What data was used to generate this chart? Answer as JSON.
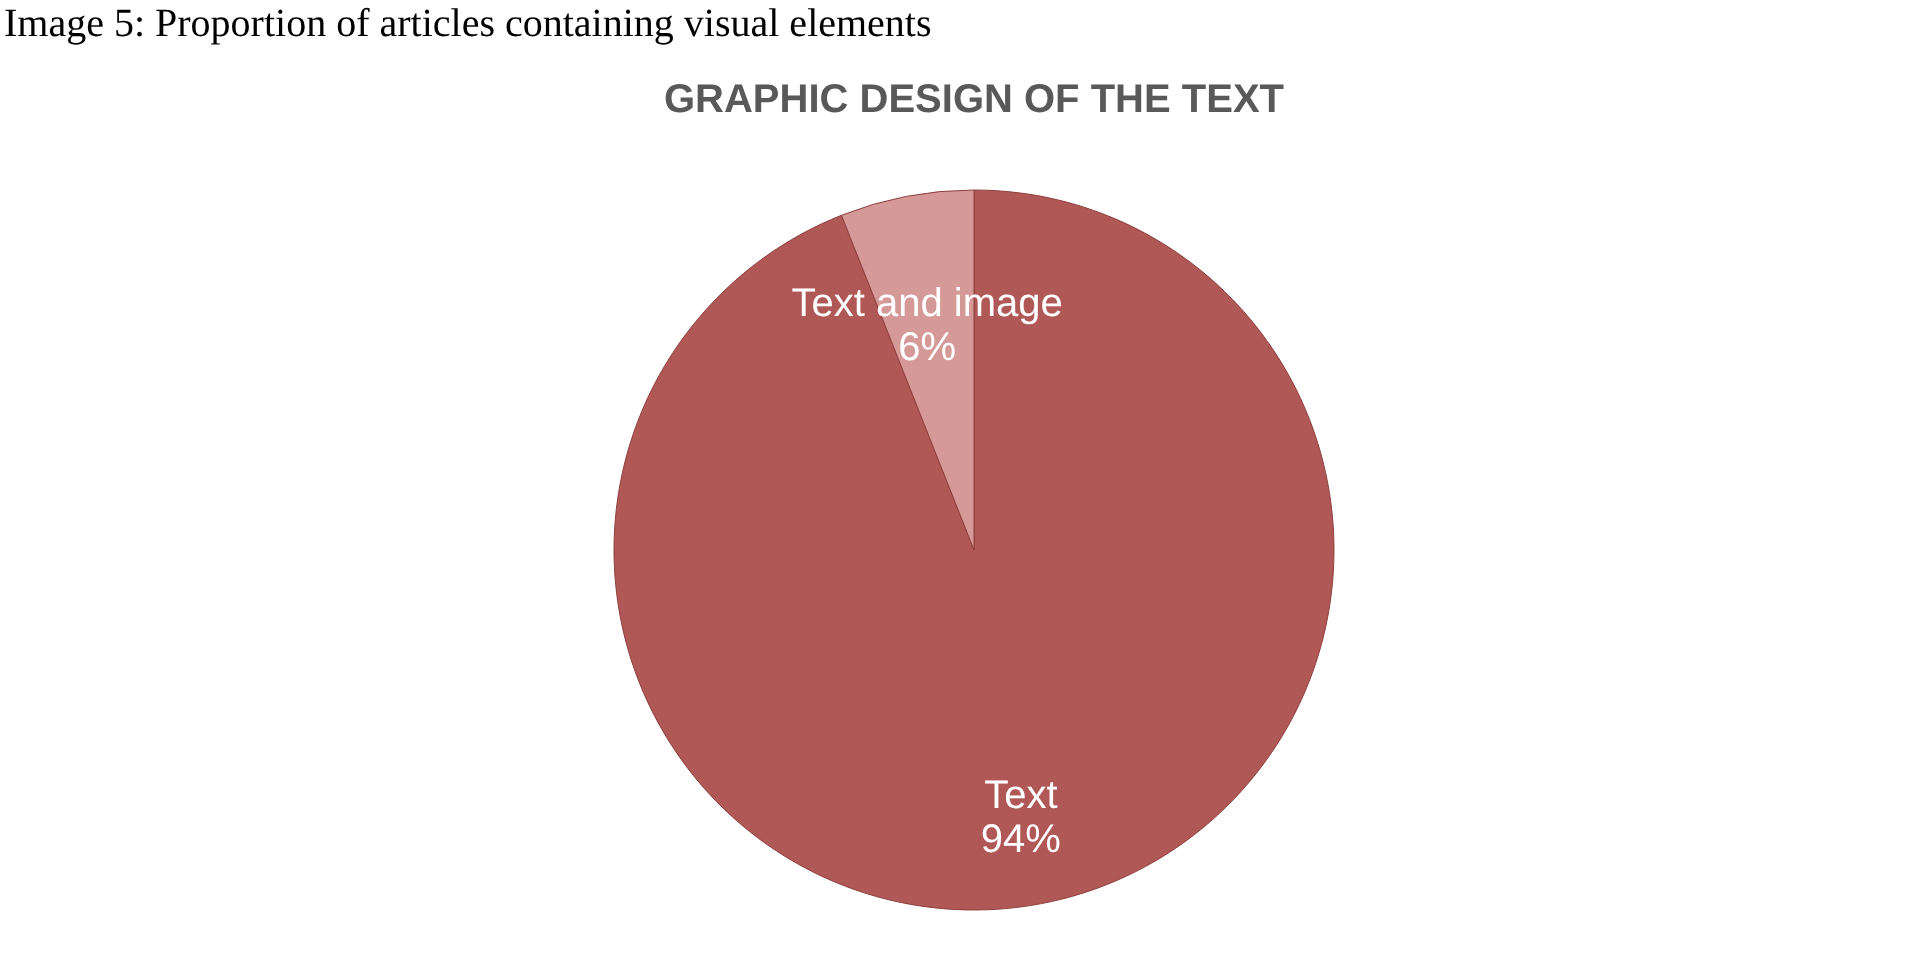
{
  "chart_data": {
    "type": "pie",
    "title": "GRAPHIC DESIGN OF THE TEXT",
    "annotations": [
      "Image 5: Proportion of articles containing visual elements"
    ],
    "categories": [
      "Text",
      "Text and image"
    ],
    "values": [
      94,
      6
    ],
    "colors": [
      "#b05855",
      "#d59a98"
    ],
    "value_labels": [
      "94%",
      "6%"
    ],
    "legend": false
  }
}
